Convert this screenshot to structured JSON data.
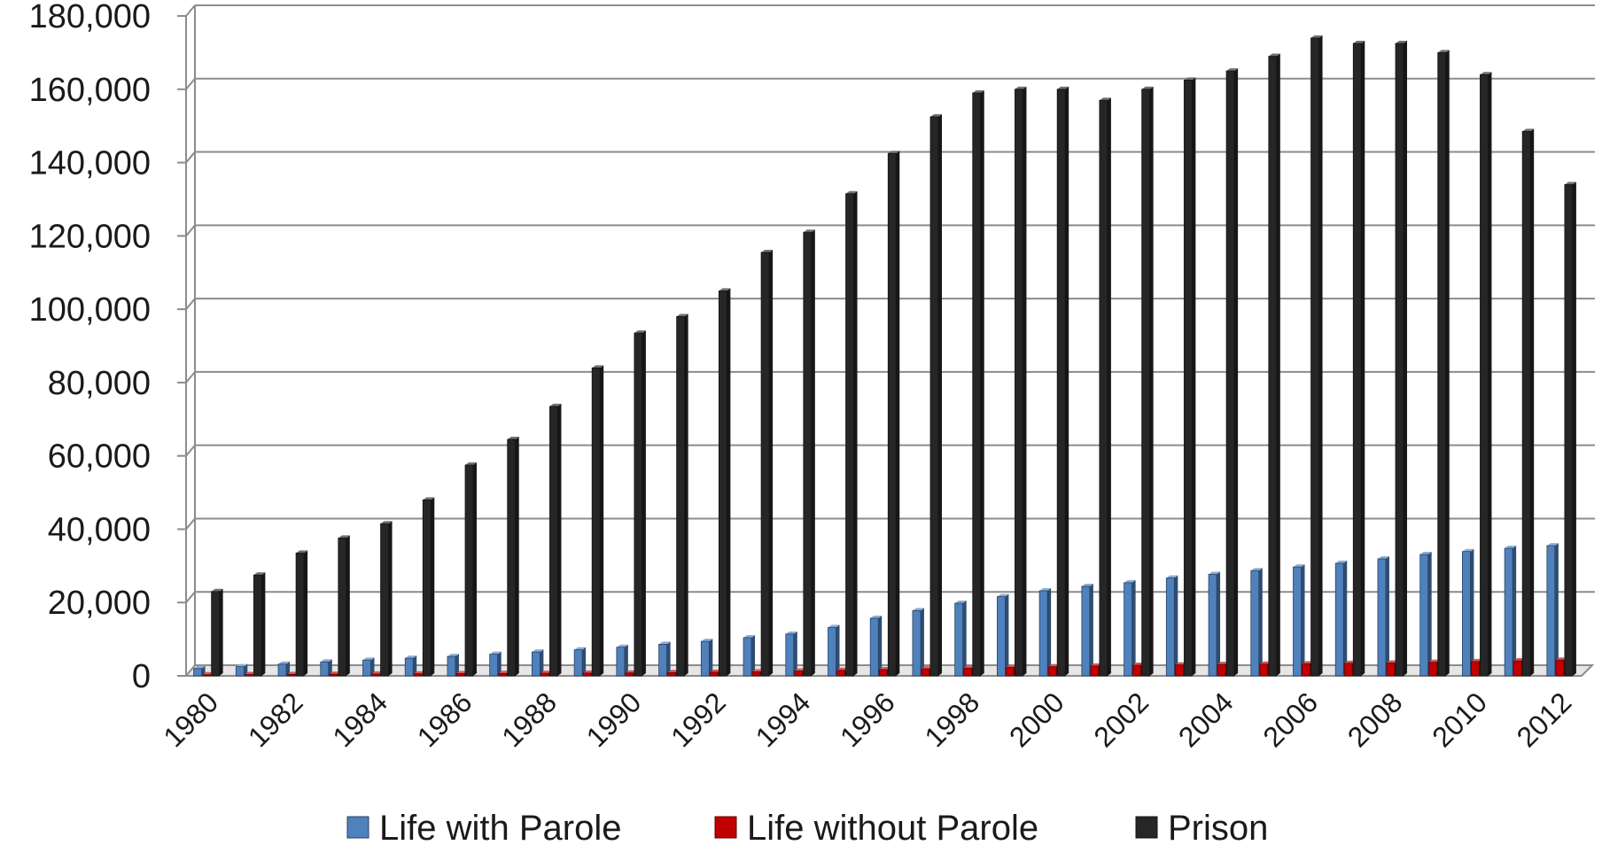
{
  "chart_data": {
    "type": "bar",
    "title": "",
    "xlabel": "",
    "ylabel": "",
    "ylim": [
      0,
      180000
    ],
    "y_ticks": [
      0,
      20000,
      40000,
      60000,
      80000,
      100000,
      120000,
      140000,
      160000,
      180000
    ],
    "y_tick_labels": [
      "0",
      "20,000",
      "40,000",
      "60,000",
      "80,000",
      "100,000",
      "120,000",
      "140,000",
      "160,000",
      "180,000"
    ],
    "grid": true,
    "legend_position": "bottom",
    "categories": [
      "1980",
      "1981",
      "1982",
      "1983",
      "1984",
      "1985",
      "1986",
      "1987",
      "1988",
      "1989",
      "1990",
      "1991",
      "1992",
      "1993",
      "1994",
      "1995",
      "1996",
      "1997",
      "1998",
      "1999",
      "2000",
      "2001",
      "2002",
      "2003",
      "2004",
      "2005",
      "2006",
      "2007",
      "2008",
      "2009",
      "2010",
      "2011",
      "2012"
    ],
    "x_tick_labels": [
      "1980",
      "",
      "1982",
      "",
      "1984",
      "",
      "1986",
      "",
      "1988",
      "",
      "1990",
      "",
      "1992",
      "",
      "1994",
      "",
      "1996",
      "",
      "1998",
      "",
      "2000",
      "",
      "2002",
      "",
      "2004",
      "",
      "2006",
      "",
      "2008",
      "",
      "2010",
      "",
      "2012"
    ],
    "series": [
      {
        "name": "Life with Parole",
        "color": "#4f81bd",
        "values": [
          2000,
          2500,
          3200,
          3800,
          4300,
          4800,
          5300,
          5900,
          6500,
          7100,
          7800,
          8600,
          9400,
          10400,
          11400,
          13200,
          15700,
          17800,
          19800,
          21600,
          23200,
          24400,
          25400,
          26700,
          27700,
          28700,
          29700,
          30700,
          31900,
          33100,
          33900,
          34800,
          35500
        ]
      },
      {
        "name": "Life without Parole",
        "color": "#c00000",
        "values": [
          300,
          350,
          400,
          450,
          500,
          550,
          600,
          650,
          700,
          750,
          800,
          900,
          1000,
          1100,
          1300,
          1500,
          1700,
          1900,
          2100,
          2300,
          2500,
          2700,
          2900,
          3000,
          3100,
          3200,
          3300,
          3400,
          3500,
          3700,
          3900,
          4100,
          4300
        ]
      },
      {
        "name": "Prison",
        "color": "#262626",
        "values": [
          23000,
          27500,
          33500,
          37600,
          41500,
          48000,
          57500,
          64500,
          73500,
          84000,
          93500,
          98000,
          105000,
          115500,
          121000,
          131500,
          142500,
          152500,
          159000,
          160000,
          160000,
          157000,
          160000,
          162500,
          165000,
          169000,
          174000,
          172500,
          172500,
          170000,
          164000,
          148500,
          134000
        ]
      }
    ]
  }
}
